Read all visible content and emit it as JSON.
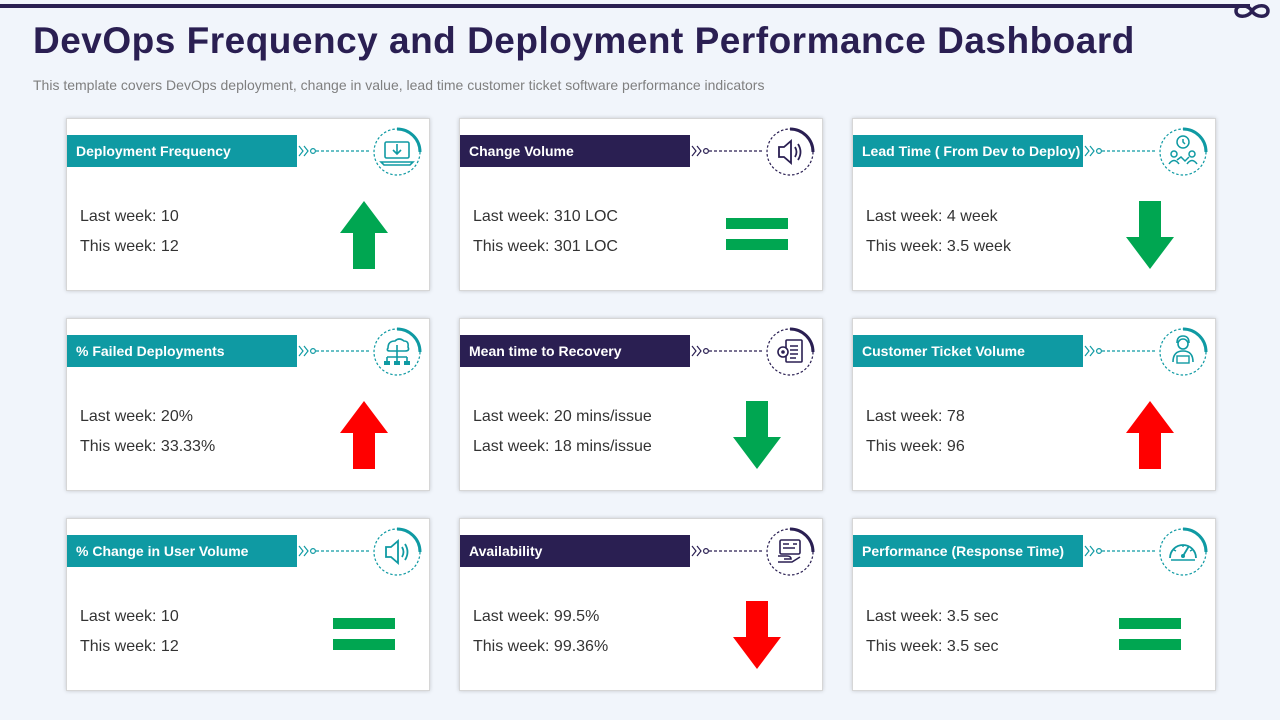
{
  "page": {
    "title": "DevOps Frequency and Deployment Performance Dashboard",
    "subtitle": "This template covers DevOps deployment, change in value, lead time customer ticket software performance indicators"
  },
  "colors": {
    "navy": "#2a1f52",
    "teal": "#0f9aa3",
    "green": "#00a651",
    "red": "#ff0000"
  },
  "cards": [
    {
      "label": "Deployment Frequency",
      "label_style": "teal",
      "icon": "laptop-download-icon",
      "last": "Last week: 10",
      "this": "This week: 12",
      "trend": "up",
      "trend_color": "green"
    },
    {
      "label": "Change Volume",
      "label_style": "navy",
      "icon": "speaker-icon",
      "last": "Last week: 310 LOC",
      "this": "This week: 301 LOC",
      "trend": "equal",
      "trend_color": "green"
    },
    {
      "label": "Lead Time ( From Dev to Deploy)",
      "label_style": "teal",
      "icon": "team-clock-icon",
      "last": "Last week: 4 week",
      "this": "This week: 3.5 week",
      "trend": "down",
      "trend_color": "green"
    },
    {
      "label": "% Failed Deployments",
      "label_style": "teal",
      "icon": "cloud-network-icon",
      "last": "Last week: 20%",
      "this": "This week: 33.33%",
      "trend": "up",
      "trend_color": "red"
    },
    {
      "label": "Mean time to Recovery",
      "label_style": "navy",
      "icon": "document-gear-icon",
      "last": "Last week: 20 mins/issue",
      "this": "Last week: 18 mins/issue",
      "trend": "down",
      "trend_color": "green"
    },
    {
      "label": "Customer  Ticket Volume",
      "label_style": "teal",
      "icon": "support-agent-icon",
      "last": "Last week: 78",
      "this": "This week: 96",
      "trend": "up",
      "trend_color": "red"
    },
    {
      "label": "% Change in User Volume",
      "label_style": "teal",
      "icon": "speaker-icon",
      "last": "Last week: 10",
      "this": "This week: 12",
      "trend": "equal",
      "trend_color": "green"
    },
    {
      "label": "Availability",
      "label_style": "navy",
      "icon": "hand-card-icon",
      "last": "Last week: 99.5%",
      "this": "This week: 99.36%",
      "trend": "down",
      "trend_color": "red"
    },
    {
      "label": "Performance (Response  Time)",
      "label_style": "teal",
      "icon": "speedometer-icon",
      "last": "Last week: 3.5 sec",
      "this": "This week: 3.5 sec",
      "trend": "equal",
      "trend_color": "green"
    }
  ]
}
